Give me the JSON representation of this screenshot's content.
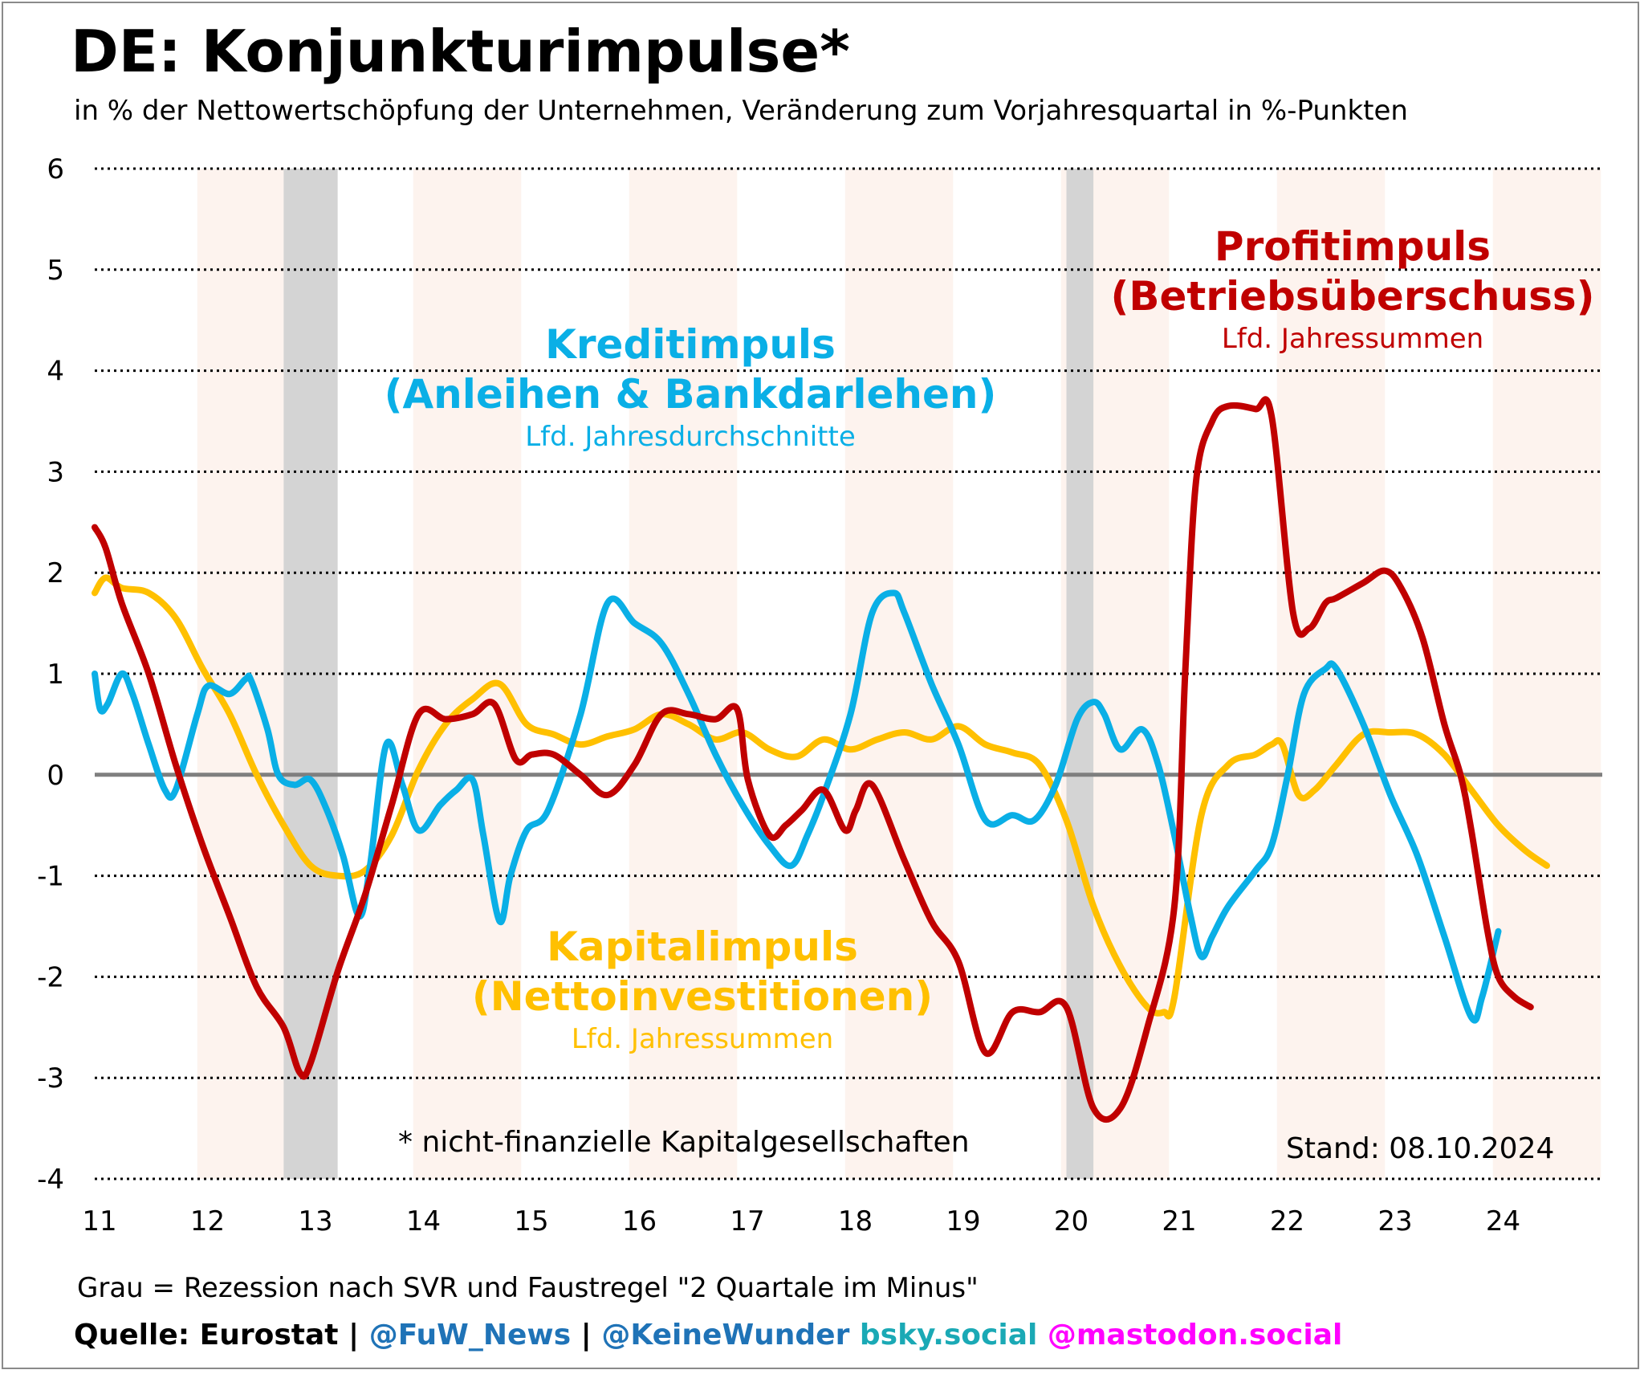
{
  "title": "DE: Konjunkturimpulse*",
  "subtitle": "in % der Nettowertschöpfung der Unternehmen, Veränderung zum Vorjahresquartal in %-Punkten",
  "footnote": "* nicht-finanzielle Kapitalgesellschaften",
  "stand": "Stand: 08.10.2024",
  "note": "Grau = Rezession nach SVR und Faustregel \"2 Quartale im Minus\"",
  "source": {
    "label": "Quelle: Eurostat |",
    "handle1": "@FuW_News",
    "sep": "|",
    "handle2": "@KeineWunder",
    "bsky": "bsky.social",
    "mastodon": "@mastodon.social",
    "colors": {
      "label": "#000000",
      "handle1": "#1f73b7",
      "handle2": "#1f73b7",
      "bsky": "#1aa9b5",
      "mastodon": "#ff00ff"
    }
  },
  "annotations": {
    "credit": {
      "line1": "Kreditimpuls",
      "line2": "(Anleihen & Bankdarlehen)",
      "sub": "Lfd. Jahresdurchschnitte",
      "color": "#0aafe6"
    },
    "profit": {
      "line1": "Profitimpuls",
      "line2": "(Betriebsüberschuss)",
      "sub": "Lfd. Jahressummen",
      "color": "#c00000"
    },
    "capital": {
      "line1": "Kapitalimpuls",
      "line2": "(Nettoinvestitionen)",
      "sub": "Lfd. Jahressummen",
      "color": "#ffc000"
    }
  },
  "chart_data": {
    "type": "line",
    "ylim": [
      -4,
      6
    ],
    "yticks": [
      "6",
      "5",
      "4",
      "3",
      "2",
      "1",
      "0",
      "-1",
      "-2",
      "-3",
      "-4"
    ],
    "ytick_values": [
      6,
      5,
      4,
      3,
      2,
      1,
      0,
      -1,
      -2,
      -3,
      -4
    ],
    "xlim": [
      2011,
      2025
    ],
    "xticks": [
      "11",
      "12",
      "13",
      "14",
      "15",
      "16",
      "17",
      "18",
      "19",
      "20",
      "21",
      "22",
      "23",
      "24"
    ],
    "xtick_values": [
      2011,
      2012,
      2013,
      2014,
      2015,
      2016,
      2017,
      2018,
      2019,
      2020,
      2021,
      2022,
      2023,
      2024
    ],
    "grid": "horizontal dotted",
    "recessions": [
      [
        2012.75,
        2013.25
      ],
      [
        2020.0,
        2020.25
      ]
    ],
    "shaded_years": [
      2012,
      2014,
      2016,
      2018,
      2020,
      2022,
      2024
    ],
    "colors": {
      "zero_line": "#7f7f7f",
      "recession": "#d4d4d4",
      "year_band": "#fdf3ee",
      "grid": "#000000"
    },
    "series": [
      {
        "name": "Kreditimpuls",
        "color": "#0aafe6",
        "points": [
          [
            2011.0,
            1.0
          ],
          [
            2011.05,
            0.65
          ],
          [
            2011.12,
            0.7
          ],
          [
            2011.25,
            1.0
          ],
          [
            2011.35,
            0.8
          ],
          [
            2011.5,
            0.3
          ],
          [
            2011.65,
            -0.15
          ],
          [
            2011.75,
            -0.15
          ],
          [
            2011.95,
            0.6
          ],
          [
            2012.05,
            0.88
          ],
          [
            2012.25,
            0.8
          ],
          [
            2012.4,
            0.95
          ],
          [
            2012.45,
            0.93
          ],
          [
            2012.6,
            0.45
          ],
          [
            2012.7,
            0.0
          ],
          [
            2012.85,
            -0.1
          ],
          [
            2013.0,
            -0.05
          ],
          [
            2013.15,
            -0.35
          ],
          [
            2013.3,
            -0.8
          ],
          [
            2013.45,
            -1.4
          ],
          [
            2013.55,
            -0.9
          ],
          [
            2013.7,
            0.3
          ],
          [
            2013.85,
            -0.1
          ],
          [
            2014.0,
            -0.55
          ],
          [
            2014.2,
            -0.3
          ],
          [
            2014.35,
            -0.15
          ],
          [
            2014.5,
            -0.05
          ],
          [
            2014.6,
            -0.6
          ],
          [
            2014.75,
            -1.45
          ],
          [
            2014.85,
            -1.0
          ],
          [
            2015.0,
            -0.55
          ],
          [
            2015.2,
            -0.35
          ],
          [
            2015.5,
            0.6
          ],
          [
            2015.75,
            1.7
          ],
          [
            2016.0,
            1.5
          ],
          [
            2016.25,
            1.3
          ],
          [
            2016.5,
            0.8
          ],
          [
            2016.75,
            0.2
          ],
          [
            2017.0,
            -0.3
          ],
          [
            2017.25,
            -0.7
          ],
          [
            2017.45,
            -0.9
          ],
          [
            2017.6,
            -0.6
          ],
          [
            2017.75,
            -0.2
          ],
          [
            2018.0,
            0.6
          ],
          [
            2018.2,
            1.6
          ],
          [
            2018.4,
            1.8
          ],
          [
            2018.5,
            1.6
          ],
          [
            2018.75,
            0.9
          ],
          [
            2019.0,
            0.3
          ],
          [
            2019.25,
            -0.45
          ],
          [
            2019.5,
            -0.4
          ],
          [
            2019.7,
            -0.45
          ],
          [
            2019.9,
            -0.1
          ],
          [
            2020.1,
            0.55
          ],
          [
            2020.25,
            0.72
          ],
          [
            2020.35,
            0.6
          ],
          [
            2020.5,
            0.25
          ],
          [
            2020.7,
            0.45
          ],
          [
            2020.85,
            0.1
          ],
          [
            2021.0,
            -0.6
          ],
          [
            2021.15,
            -1.4
          ],
          [
            2021.25,
            -1.8
          ],
          [
            2021.35,
            -1.6
          ],
          [
            2021.5,
            -1.3
          ],
          [
            2021.75,
            -0.95
          ],
          [
            2021.9,
            -0.7
          ],
          [
            2022.05,
            0.0
          ],
          [
            2022.2,
            0.8
          ],
          [
            2022.4,
            1.05
          ],
          [
            2022.5,
            1.05
          ],
          [
            2022.75,
            0.5
          ],
          [
            2023.0,
            -0.2
          ],
          [
            2023.25,
            -0.8
          ],
          [
            2023.5,
            -1.6
          ],
          [
            2023.75,
            -2.4
          ],
          [
            2023.85,
            -2.2
          ],
          [
            2024.0,
            -1.55
          ]
        ]
      },
      {
        "name": "Profitimpuls",
        "color": "#c00000",
        "points": [
          [
            2011.0,
            2.45
          ],
          [
            2011.1,
            2.25
          ],
          [
            2011.25,
            1.7
          ],
          [
            2011.5,
            1.0
          ],
          [
            2011.75,
            0.1
          ],
          [
            2012.0,
            -0.7
          ],
          [
            2012.25,
            -1.4
          ],
          [
            2012.5,
            -2.1
          ],
          [
            2012.75,
            -2.5
          ],
          [
            2012.9,
            -2.95
          ],
          [
            2013.0,
            -2.85
          ],
          [
            2013.25,
            -1.95
          ],
          [
            2013.5,
            -1.2
          ],
          [
            2013.75,
            -0.3
          ],
          [
            2014.0,
            0.6
          ],
          [
            2014.25,
            0.55
          ],
          [
            2014.5,
            0.6
          ],
          [
            2014.7,
            0.7
          ],
          [
            2014.9,
            0.15
          ],
          [
            2015.05,
            0.2
          ],
          [
            2015.25,
            0.2
          ],
          [
            2015.5,
            0.0
          ],
          [
            2015.75,
            -0.2
          ],
          [
            2016.0,
            0.1
          ],
          [
            2016.25,
            0.6
          ],
          [
            2016.5,
            0.6
          ],
          [
            2016.75,
            0.55
          ],
          [
            2016.95,
            0.65
          ],
          [
            2017.05,
            -0.05
          ],
          [
            2017.25,
            -0.6
          ],
          [
            2017.4,
            -0.5
          ],
          [
            2017.55,
            -0.35
          ],
          [
            2017.75,
            -0.15
          ],
          [
            2017.95,
            -0.55
          ],
          [
            2018.05,
            -0.35
          ],
          [
            2018.2,
            -0.1
          ],
          [
            2018.5,
            -0.85
          ],
          [
            2018.75,
            -1.45
          ],
          [
            2019.0,
            -1.85
          ],
          [
            2019.25,
            -2.75
          ],
          [
            2019.5,
            -2.35
          ],
          [
            2019.75,
            -2.35
          ],
          [
            2020.0,
            -2.3
          ],
          [
            2020.25,
            -3.3
          ],
          [
            2020.5,
            -3.3
          ],
          [
            2020.75,
            -2.5
          ],
          [
            2021.0,
            -1.3
          ],
          [
            2021.1,
            1.0
          ],
          [
            2021.2,
            2.9
          ],
          [
            2021.35,
            3.5
          ],
          [
            2021.5,
            3.65
          ],
          [
            2021.75,
            3.62
          ],
          [
            2021.9,
            3.55
          ],
          [
            2022.1,
            1.6
          ],
          [
            2022.25,
            1.45
          ],
          [
            2022.4,
            1.7
          ],
          [
            2022.5,
            1.75
          ],
          [
            2022.75,
            1.9
          ],
          [
            2022.95,
            2.02
          ],
          [
            2023.1,
            1.85
          ],
          [
            2023.3,
            1.35
          ],
          [
            2023.5,
            0.5
          ],
          [
            2023.65,
            0.0
          ],
          [
            2023.75,
            -0.55
          ],
          [
            2023.9,
            -1.55
          ],
          [
            2024.0,
            -2.0
          ],
          [
            2024.15,
            -2.2
          ],
          [
            2024.3,
            -2.3
          ]
        ]
      },
      {
        "name": "Kapitalimpuls",
        "color": "#ffc000",
        "points": [
          [
            2011.0,
            1.8
          ],
          [
            2011.1,
            1.95
          ],
          [
            2011.25,
            1.85
          ],
          [
            2011.5,
            1.8
          ],
          [
            2011.75,
            1.55
          ],
          [
            2012.0,
            1.05
          ],
          [
            2012.25,
            0.6
          ],
          [
            2012.5,
            0.0
          ],
          [
            2012.75,
            -0.5
          ],
          [
            2013.0,
            -0.9
          ],
          [
            2013.25,
            -1.0
          ],
          [
            2013.5,
            -0.95
          ],
          [
            2013.75,
            -0.6
          ],
          [
            2014.0,
            0.05
          ],
          [
            2014.25,
            0.5
          ],
          [
            2014.5,
            0.75
          ],
          [
            2014.75,
            0.9
          ],
          [
            2015.0,
            0.5
          ],
          [
            2015.25,
            0.4
          ],
          [
            2015.5,
            0.3
          ],
          [
            2015.75,
            0.38
          ],
          [
            2016.0,
            0.45
          ],
          [
            2016.25,
            0.6
          ],
          [
            2016.5,
            0.5
          ],
          [
            2016.75,
            0.35
          ],
          [
            2017.0,
            0.42
          ],
          [
            2017.25,
            0.25
          ],
          [
            2017.5,
            0.18
          ],
          [
            2017.75,
            0.35
          ],
          [
            2018.0,
            0.25
          ],
          [
            2018.25,
            0.35
          ],
          [
            2018.5,
            0.42
          ],
          [
            2018.75,
            0.35
          ],
          [
            2019.0,
            0.48
          ],
          [
            2019.25,
            0.3
          ],
          [
            2019.5,
            0.22
          ],
          [
            2019.75,
            0.1
          ],
          [
            2020.0,
            -0.45
          ],
          [
            2020.25,
            -1.3
          ],
          [
            2020.5,
            -1.9
          ],
          [
            2020.75,
            -2.3
          ],
          [
            2020.9,
            -2.35
          ],
          [
            2021.0,
            -2.2
          ],
          [
            2021.25,
            -0.4
          ],
          [
            2021.5,
            0.1
          ],
          [
            2021.75,
            0.2
          ],
          [
            2021.9,
            0.3
          ],
          [
            2022.0,
            0.3
          ],
          [
            2022.15,
            -0.2
          ],
          [
            2022.3,
            -0.15
          ],
          [
            2022.5,
            0.1
          ],
          [
            2022.75,
            0.4
          ],
          [
            2023.0,
            0.42
          ],
          [
            2023.25,
            0.4
          ],
          [
            2023.5,
            0.2
          ],
          [
            2023.75,
            -0.15
          ],
          [
            2024.0,
            -0.5
          ],
          [
            2024.25,
            -0.75
          ],
          [
            2024.45,
            -0.9
          ]
        ]
      }
    ]
  }
}
